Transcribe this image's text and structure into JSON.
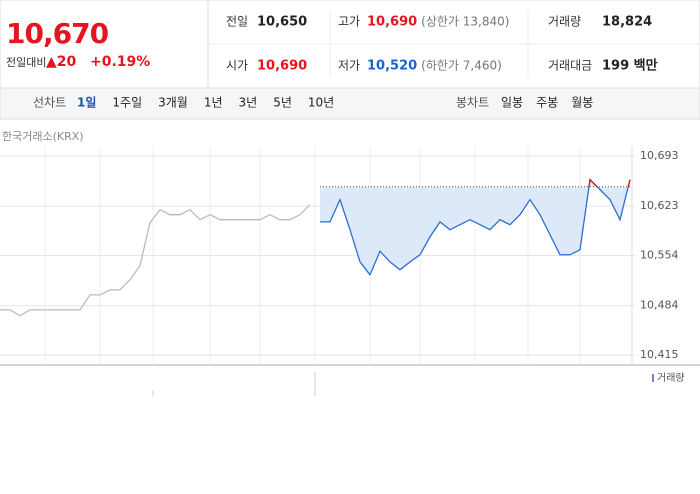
{
  "quote": {
    "price": "10,670",
    "change_label": "전일대비",
    "change": "▲20",
    "change_rate": "+0.19%",
    "items": [
      {
        "label": "전일",
        "value": {
          "value": 10650,
          "label": "10,650"
        }
      },
      {
        "label": "고가",
        "value": "10,690",
        "note": "(상한가 13,840)"
      },
      {
        "label": "거래량",
        "value": "18,824"
      },
      {
        "label": "시가",
        "value": "10,690"
      },
      {
        "label": "저가",
        "value": "10,520",
        "note": "(하한가 7,460)"
      },
      {
        "label": "거래대금",
        "value": "199 백만"
      }
    ]
  },
  "tabs": {
    "line_label": "선차트",
    "line": [
      "1일",
      "1주일",
      "3개월",
      "1년",
      "3년",
      "5년",
      "10년"
    ],
    "candle_label": "봉차트",
    "candle": [
      "일봉",
      "주봉",
      "월봉"
    ]
  },
  "source": "한국거래소(KRX)",
  "volume_legend": "거래량",
  "chart_data": {
    "type": "line",
    "categories": [
      null,
      null,
      null,
      null,
      null,
      null,
      null,
      null,
      null,
      null,
      null,
      null,
      null,
      null,
      null,
      null,
      null,
      null,
      null,
      null,
      null,
      null,
      null,
      null,
      null,
      null,
      null,
      null,
      null,
      null,
      null,
      null,
      null,
      null,
      null,
      null,
      null,
      null,
      null,
      null,
      null,
      null,
      null,
      null,
      null,
      null,
      null,
      null,
      null,
      null,
      null,
      null,
      null,
      null,
      null,
      null,
      null,
      null,
      null,
      null,
      null,
      null,
      null,
      null
    ],
    "series": [
      {
        "color": "#bbbbbb",
        "values": [
          10478,
          10478,
          10470,
          10478,
          10478,
          10478,
          10478,
          10478,
          10478,
          10499,
          10499,
          10506,
          10506,
          10520,
          10540,
          10600,
          10618,
          10611,
          10611,
          10618,
          10604,
          10611,
          10604,
          10604,
          10604,
          10604,
          10604,
          10611,
          10604,
          10604,
          10611,
          10625,
          null,
          null,
          null,
          null,
          null,
          null,
          null,
          null,
          null,
          null,
          null,
          null,
          null,
          null,
          null,
          null,
          null,
          null,
          null,
          null,
          null,
          null,
          null,
          null,
          null,
          null,
          null,
          null,
          null,
          null,
          null,
          null
        ]
      },
      {
        "color": "#2a6fd1",
        "values": [
          null,
          null,
          null,
          null,
          null,
          null,
          null,
          null,
          null,
          null,
          null,
          null,
          null,
          null,
          null,
          null,
          null,
          null,
          null,
          null,
          null,
          null,
          null,
          null,
          null,
          null,
          null,
          null,
          null,
          null,
          null,
          null,
          10601,
          10601,
          10632,
          10590,
          10545,
          10527,
          10560,
          10545,
          10534,
          10545,
          10555,
          10580,
          10601,
          10590,
          10597,
          10604,
          10597,
          10590,
          10604,
          10597,
          10611,
          10632,
          10611,
          10583,
          10555,
          10555,
          10562,
          10660,
          10646,
          10632,
          10604,
          10660
        ]
      }
    ],
    "ylim": [
      10415,
      10693
    ],
    "yticks": [
      {
        "value": 10415,
        "label": "10,415"
      },
      {
        "value": 10484,
        "label": "10,484"
      },
      {
        "value": 10554,
        "label": "10,554"
      },
      {
        "value": 10623,
        "label": "10,623"
      },
      {
        "value": 10693,
        "label": "10,693"
      }
    ],
    "grid": true
  }
}
